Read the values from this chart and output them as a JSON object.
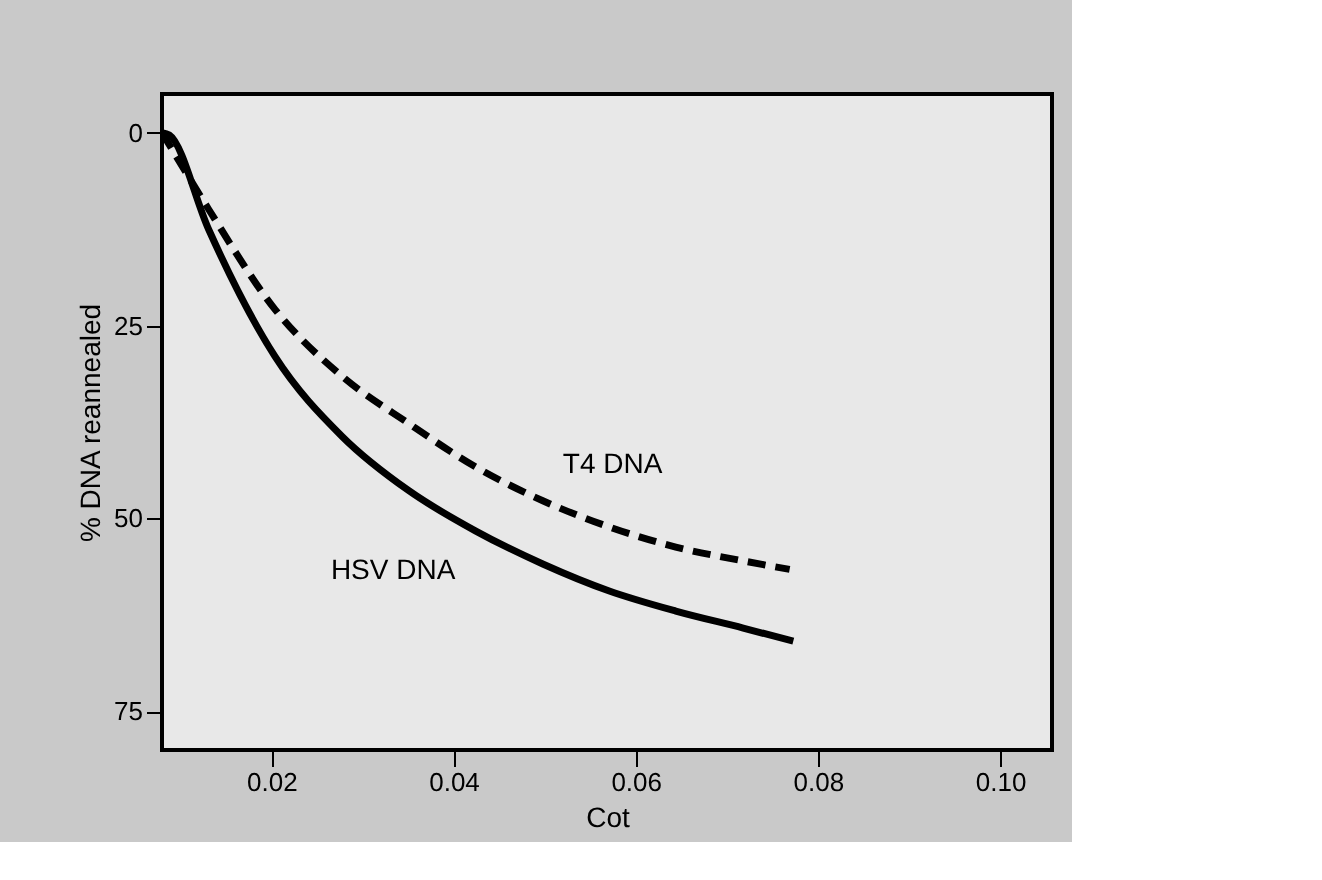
{
  "chart_data": {
    "type": "line",
    "xlabel": "Cot",
    "ylabel": "% DNA reannealed",
    "xlim": [
      0.008,
      0.1057
    ],
    "ylim": [
      80,
      -5
    ],
    "xticks": [
      0.02,
      0.04,
      0.06,
      0.08,
      {
        "value": 0.1,
        "label": "0.10"
      }
    ],
    "yticks": [
      0,
      25,
      50,
      75
    ],
    "grid": false,
    "marker": "none",
    "series": [
      {
        "name": "HSV DNA",
        "color": "#000000",
        "line_style": "solid",
        "x": [
          0.008,
          0.0088,
          0.0131,
          0.0204,
          0.0278,
          0.0351,
          0.0424,
          0.0498,
          0.0571,
          0.0644,
          0.0718,
          0.0773
        ],
        "values": [
          0,
          0.3,
          12.5,
          29,
          39.4,
          46.4,
          51.6,
          55.9,
          59.4,
          62,
          64.2,
          65.9
        ]
      },
      {
        "name": "T4 DNA",
        "color": "#000000",
        "line_style": "dashed",
        "x": [
          0.008,
          0.0131,
          0.0204,
          0.0278,
          0.0351,
          0.0424,
          0.0498,
          0.0571,
          0.0644,
          0.0718,
          0.0769
        ],
        "values": [
          0,
          9.9,
          22.9,
          31.6,
          37.7,
          43.3,
          47.7,
          51.1,
          53.7,
          55.5,
          56.6
        ]
      }
    ]
  }
}
